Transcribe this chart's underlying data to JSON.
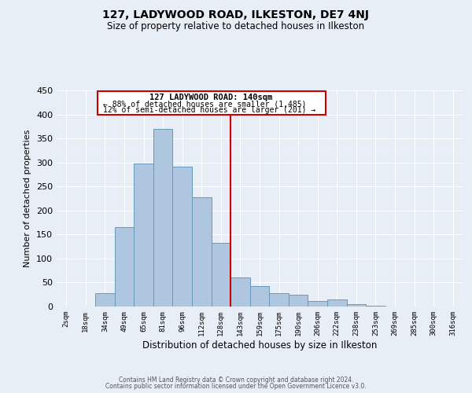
{
  "title": "127, LADYWOOD ROAD, ILKESTON, DE7 4NJ",
  "subtitle": "Size of property relative to detached houses in Ilkeston",
  "xlabel": "Distribution of detached houses by size in Ilkeston",
  "ylabel": "Number of detached properties",
  "bar_labels": [
    "2sqm",
    "18sqm",
    "34sqm",
    "49sqm",
    "65sqm",
    "81sqm",
    "96sqm",
    "112sqm",
    "128sqm",
    "143sqm",
    "159sqm",
    "175sqm",
    "190sqm",
    "206sqm",
    "222sqm",
    "238sqm",
    "253sqm",
    "269sqm",
    "285sqm",
    "300sqm",
    "316sqm"
  ],
  "bar_heights": [
    0,
    0,
    28,
    165,
    297,
    370,
    291,
    228,
    133,
    60,
    43,
    28,
    24,
    12,
    14,
    5,
    2,
    0,
    0,
    0,
    0
  ],
  "bar_color": "#aec6df",
  "bar_edgecolor": "#6699bb",
  "bar_linewidth": 0.7,
  "vline_color": "#cc0000",
  "ylim": [
    0,
    450
  ],
  "yticks": [
    0,
    50,
    100,
    150,
    200,
    250,
    300,
    350,
    400,
    450
  ],
  "annotation_title": "127 LADYWOOD ROAD: 140sqm",
  "annotation_line1": "← 88% of detached houses are smaller (1,485)",
  "annotation_line2": "12% of semi-detached houses are larger (201) →",
  "annotation_box_color": "#cc0000",
  "bg_color": "#e8eef5",
  "grid_color": "#ffffff",
  "footer_line1": "Contains HM Land Registry data © Crown copyright and database right 2024.",
  "footer_line2": "Contains public sector information licensed under the Open Government Licence v3.0."
}
